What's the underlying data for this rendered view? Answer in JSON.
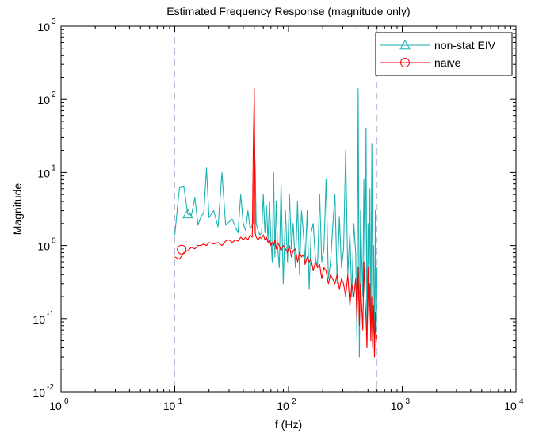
{
  "chart_data": {
    "type": "line",
    "title": "Estimated Frequency Response (magnitude only)",
    "xlabel": "f (Hz)",
    "ylabel": "Magnitude",
    "xscale": "log",
    "yscale": "log",
    "xlim": [
      1,
      10000
    ],
    "ylim": [
      0.01,
      1000
    ],
    "x_ticks": [
      {
        "base": "10",
        "exp": "0",
        "value": 1
      },
      {
        "base": "10",
        "exp": "1",
        "value": 10
      },
      {
        "base": "10",
        "exp": "2",
        "value": 100
      },
      {
        "base": "10",
        "exp": "3",
        "value": 1000
      },
      {
        "base": "10",
        "exp": "4",
        "value": 10000
      }
    ],
    "y_ticks": [
      {
        "base": "10",
        "exp": "-2",
        "value": 0.01
      },
      {
        "base": "10",
        "exp": "-1",
        "value": 0.1
      },
      {
        "base": "10",
        "exp": "0",
        "value": 1
      },
      {
        "base": "10",
        "exp": "1",
        "value": 10
      },
      {
        "base": "10",
        "exp": "2",
        "value": 100
      },
      {
        "base": "10",
        "exp": "3",
        "value": 1000
      }
    ],
    "grid": false,
    "legend_position": "top-right",
    "vertical_reference_lines": {
      "x": [
        10,
        600
      ],
      "style": "dashed",
      "color": "#b9b9d9"
    },
    "series": [
      {
        "name": "non-stat EIV",
        "color": "#1ab2b2",
        "marker": "triangle",
        "marker_at": [
          13,
          2.7
        ],
        "x": [
          10,
          11,
          12,
          13,
          14,
          15,
          16,
          17,
          18,
          19,
          20,
          22,
          24,
          26,
          28,
          30,
          32,
          34,
          36,
          38,
          40,
          42,
          44,
          46,
          48,
          49,
          50,
          51,
          52,
          54,
          56,
          58,
          60,
          62,
          64,
          66,
          68,
          70,
          72,
          74,
          76,
          78,
          80,
          83,
          86,
          90,
          94,
          98,
          102,
          106,
          110,
          115,
          120,
          125,
          130,
          135,
          140,
          146,
          152,
          158,
          165,
          172,
          180,
          188,
          196,
          205,
          214,
          224,
          234,
          245,
          256,
          268,
          280,
          292,
          305,
          318,
          332,
          346,
          360,
          375,
          390,
          400,
          410,
          420,
          430,
          440,
          450,
          460,
          470,
          480,
          490,
          500,
          510,
          520,
          530,
          540,
          550,
          560,
          570,
          580,
          590,
          600
        ],
        "values": [
          1.4,
          6.2,
          6.4,
          2.7,
          2.6,
          4.5,
          1.9,
          2.5,
          2.8,
          11.5,
          2.4,
          3.0,
          1.8,
          10.0,
          1.9,
          2.1,
          2.3,
          1.8,
          1.5,
          5.0,
          2.0,
          1.6,
          3.0,
          1.7,
          1.9,
          2.0,
          25.0,
          12.0,
          2.0,
          1.6,
          1.4,
          1.5,
          5.0,
          1.5,
          3.5,
          1.2,
          4.0,
          1.2,
          0.6,
          10.0,
          0.7,
          4.0,
          1.0,
          0.5,
          7.0,
          0.3,
          3.0,
          0.6,
          5.0,
          0.9,
          2.0,
          0.5,
          4.0,
          0.4,
          3.0,
          1.5,
          0.6,
          3.0,
          0.25,
          1.5,
          2.0,
          0.7,
          0.5,
          5.0,
          0.6,
          0.9,
          8.0,
          0.35,
          0.6,
          1.8,
          5.0,
          0.3,
          2.5,
          0.5,
          0.9,
          20.0,
          0.4,
          1.5,
          0.2,
          2.0,
          0.8,
          0.05,
          140.0,
          0.03,
          3.0,
          0.7,
          0.2,
          8.0,
          0.5,
          40.0,
          0.04,
          2.0,
          0.3,
          6.0,
          0.05,
          25.0,
          0.2,
          1.0,
          0.03,
          3.0,
          0.05,
          0.5
        ]
      },
      {
        "name": "naive",
        "color": "#ff0000",
        "marker": "circle",
        "marker_at": [
          11.5,
          0.88
        ],
        "x": [
          10,
          11,
          12,
          13,
          14,
          15,
          16,
          17,
          18,
          19,
          20,
          22,
          24,
          26,
          28,
          30,
          32,
          34,
          36,
          38,
          40,
          42,
          44,
          46,
          48,
          49,
          50,
          51,
          52,
          54,
          56,
          58,
          60,
          62,
          64,
          66,
          68,
          70,
          72,
          74,
          76,
          78,
          80,
          83,
          86,
          90,
          94,
          98,
          102,
          106,
          110,
          115,
          120,
          125,
          130,
          135,
          140,
          146,
          152,
          158,
          165,
          172,
          180,
          188,
          196,
          205,
          214,
          224,
          234,
          245,
          256,
          268,
          280,
          292,
          305,
          318,
          332,
          346,
          360,
          375,
          390,
          400,
          410,
          420,
          430,
          440,
          450,
          460,
          470,
          480,
          490,
          500,
          510,
          520,
          530,
          540,
          550,
          560,
          570,
          580,
          590,
          600
        ],
        "values": [
          0.7,
          0.65,
          0.8,
          0.85,
          0.95,
          0.9,
          1.0,
          1.0,
          1.05,
          1.0,
          1.1,
          1.05,
          1.1,
          1.0,
          1.15,
          1.2,
          1.1,
          1.2,
          1.15,
          1.3,
          1.2,
          1.3,
          1.2,
          1.4,
          1.3,
          20.0,
          140.0,
          1.5,
          1.3,
          1.2,
          1.3,
          1.25,
          1.4,
          1.2,
          1.3,
          1.1,
          1.2,
          1.0,
          1.1,
          1.0,
          1.2,
          0.9,
          1.1,
          1.0,
          0.85,
          1.0,
          0.9,
          0.8,
          1.0,
          0.7,
          0.85,
          0.9,
          0.6,
          0.8,
          0.7,
          0.75,
          0.55,
          0.7,
          0.6,
          0.65,
          0.45,
          0.6,
          0.5,
          0.55,
          0.35,
          0.5,
          0.45,
          0.3,
          0.4,
          0.35,
          0.3,
          0.4,
          0.25,
          0.35,
          0.3,
          0.2,
          0.4,
          0.15,
          0.3,
          0.2,
          0.35,
          0.1,
          0.5,
          0.08,
          0.3,
          0.15,
          0.07,
          0.6,
          0.2,
          0.1,
          0.04,
          0.5,
          0.08,
          0.3,
          0.05,
          0.2,
          0.04,
          0.15,
          0.03,
          0.12,
          0.05,
          0.06
        ]
      }
    ]
  }
}
